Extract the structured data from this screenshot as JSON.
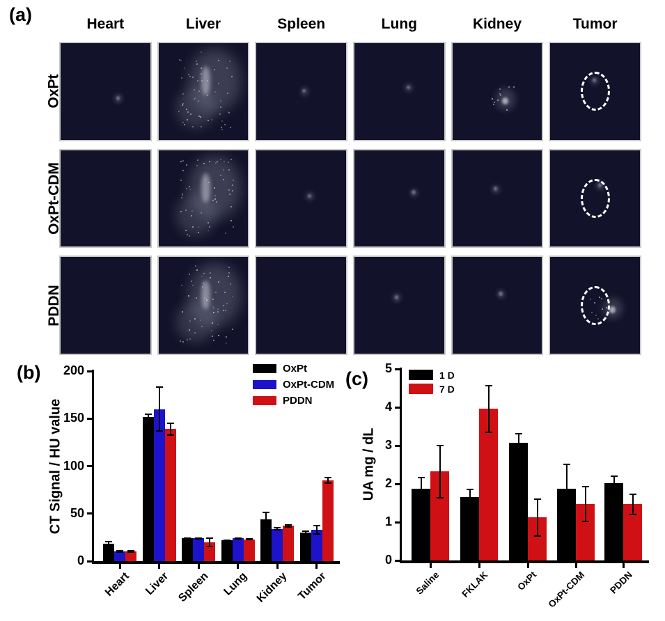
{
  "figure": {
    "panel_a_label": "(a)",
    "panel_b_label": "(b)",
    "panel_c_label": "(c)"
  },
  "panel_a": {
    "column_headers": [
      "Heart",
      "Liver",
      "Spleen",
      "Lung",
      "Kidney",
      "Tumor"
    ],
    "row_labels": [
      "OxPt",
      "OxPt-CDM",
      "PDDN"
    ],
    "scan_background": "#12122a",
    "roi_color": "#ffffff",
    "signals": [
      [
        "faint",
        "strong",
        "faint",
        "faint",
        "medium",
        "roi-faint"
      ],
      [
        "none",
        "strong",
        "faint",
        "faint",
        "faint",
        "roi-faint"
      ],
      [
        "none",
        "strong",
        "none",
        "faint",
        "faint",
        "roi-medium"
      ]
    ]
  },
  "colors": {
    "black": "#000000",
    "blue": "#1c13cb",
    "red": "#cf1115"
  },
  "chart_data": [
    {
      "id": "b",
      "type": "bar",
      "panel": "(b)",
      "ylabel": "CT Signal / HU value",
      "xlabel": "",
      "ylim": [
        0,
        200
      ],
      "yticks": [
        0,
        50,
        100,
        150,
        200
      ],
      "grid": false,
      "legend_position": "top-right",
      "categories": [
        "Heart",
        "Liver",
        "Spleen",
        "Lung",
        "Kidney",
        "Tumor"
      ],
      "series": [
        {
          "name": "OxPt",
          "color": "#000000",
          "values": [
            18,
            152,
            24,
            22,
            44,
            30
          ],
          "errors": [
            3,
            3,
            1,
            1,
            8,
            2
          ]
        },
        {
          "name": "OxPt-CDM",
          "color": "#1c13cb",
          "values": [
            10,
            160,
            24,
            24,
            34,
            33
          ],
          "errors": [
            1.5,
            24,
            1,
            1,
            2,
            5
          ]
        },
        {
          "name": "PDDN",
          "color": "#cf1115",
          "values": [
            10,
            139,
            20,
            23,
            37,
            85
          ],
          "errors": [
            1.5,
            7,
            5,
            1,
            1.5,
            4
          ]
        }
      ]
    },
    {
      "id": "c",
      "type": "bar",
      "panel": "(c)",
      "ylabel": "UA mg / dL",
      "xlabel": "",
      "ylim": [
        0,
        5
      ],
      "yticks": [
        0,
        1,
        2,
        3,
        4,
        5
      ],
      "grid": false,
      "legend_position": "top-left",
      "categories": [
        "Saline",
        "FKLAK",
        "OxPt",
        "OxPt-CDM",
        "PDDN"
      ],
      "series": [
        {
          "name": "1 D",
          "color": "#000000",
          "values": [
            1.88,
            1.65,
            3.07,
            1.88,
            2.02
          ],
          "errors": [
            0.3,
            0.23,
            0.26,
            0.65,
            0.2
          ]
        },
        {
          "name": "7 D",
          "color": "#cf1115",
          "values": [
            2.32,
            3.96,
            1.12,
            1.47,
            1.47
          ],
          "errors": [
            0.7,
            0.63,
            0.5,
            0.47,
            0.28
          ]
        }
      ]
    }
  ]
}
